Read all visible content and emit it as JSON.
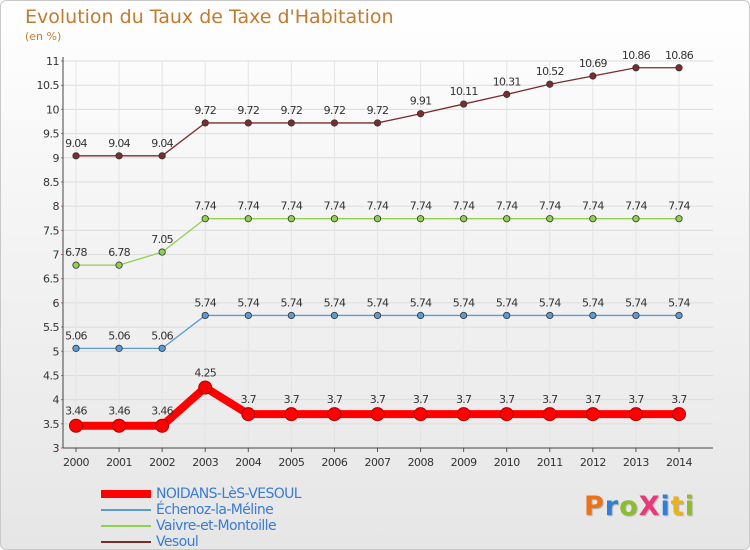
{
  "title": "Evolution du Taux de Taxe d'Habitation",
  "subtitle": "(en %)",
  "logo": {
    "text": "Proxiti",
    "letters": [
      {
        "ch": "P",
        "color": "#e8731a"
      },
      {
        "ch": "r",
        "color": "#2f7fd6"
      },
      {
        "ch": "o",
        "color": "#8cbd2a"
      },
      {
        "ch": "X",
        "color": "#e83a7a"
      },
      {
        "ch": "i",
        "color": "#2f7fd6"
      },
      {
        "ch": "t",
        "color": "#e8b21a"
      },
      {
        "ch": "i",
        "color": "#8cbd2a"
      }
    ]
  },
  "chart_data": {
    "type": "line",
    "title": "Evolution du Taux de Taxe d'Habitation",
    "ylabel": "(en %)",
    "xlabel": "",
    "ylim": [
      3,
      11
    ],
    "yticks": [
      3,
      3.5,
      4,
      4.5,
      5,
      5.5,
      6,
      6.5,
      7,
      7.5,
      8,
      8.5,
      9,
      9.5,
      10,
      10.5,
      11
    ],
    "ytick_labels": [
      "3",
      "3.5",
      "4",
      "4.5",
      "5",
      "5.5",
      "6",
      "6.5",
      "7",
      "7.5",
      "8",
      "8.5",
      "9",
      "9.5",
      "10",
      "10.5",
      "11"
    ],
    "grid": true,
    "legend_position": "bottom-left",
    "x": [
      "2000",
      "2001",
      "2002",
      "2003",
      "2004",
      "2005",
      "2006",
      "2007",
      "2008",
      "2009",
      "2010",
      "2011",
      "2012",
      "2013",
      "2014"
    ],
    "series": [
      {
        "name": "NOIDANS-LèS-VESOUL",
        "color": "#ff0000",
        "emphasis": true,
        "values": [
          3.46,
          3.46,
          3.46,
          4.25,
          3.7,
          3.7,
          3.7,
          3.7,
          3.7,
          3.7,
          3.7,
          3.7,
          3.7,
          3.7,
          3.7
        ],
        "labels": [
          "3.46",
          "3.46",
          "3.46",
          "4.25",
          "3.7",
          "3.7",
          "3.7",
          "3.7",
          "3.7",
          "3.7",
          "3.7",
          "3.7",
          "3.7",
          "3.7",
          "3.7"
        ]
      },
      {
        "name": "Échenoz-la-Méline",
        "color": "#5b9bd5",
        "emphasis": false,
        "values": [
          5.06,
          5.06,
          5.06,
          5.74,
          5.74,
          5.74,
          5.74,
          5.74,
          5.74,
          5.74,
          5.74,
          5.74,
          5.74,
          5.74,
          5.74
        ],
        "labels": [
          "5.06",
          "5.06",
          "5.06",
          "5.74",
          "5.74",
          "5.74",
          "5.74",
          "5.74",
          "5.74",
          "5.74",
          "5.74",
          "5.74",
          "5.74",
          "5.74",
          "5.74"
        ]
      },
      {
        "name": "Vaivre-et-Montoille",
        "color": "#92d050",
        "emphasis": false,
        "values": [
          6.78,
          6.78,
          7.05,
          7.74,
          7.74,
          7.74,
          7.74,
          7.74,
          7.74,
          7.74,
          7.74,
          7.74,
          7.74,
          7.74,
          7.74
        ],
        "labels": [
          "6.78",
          "6.78",
          "7.05",
          "7.74",
          "7.74",
          "7.74",
          "7.74",
          "7.74",
          "7.74",
          "7.74",
          "7.74",
          "7.74",
          "7.74",
          "7.74",
          "7.74"
        ]
      },
      {
        "name": "Vesoul",
        "color": "#7b2c2c",
        "emphasis": false,
        "values": [
          9.04,
          9.04,
          9.04,
          9.72,
          9.72,
          9.72,
          9.72,
          9.72,
          9.91,
          10.11,
          10.31,
          10.52,
          10.69,
          10.86,
          10.86
        ],
        "labels": [
          "9.04",
          "9.04",
          "9.04",
          "9.72",
          "9.72",
          "9.72",
          "9.72",
          "9.72",
          "9.91",
          "10.11",
          "10.31",
          "10.52",
          "10.69",
          "10.86",
          "10.86"
        ]
      }
    ]
  }
}
